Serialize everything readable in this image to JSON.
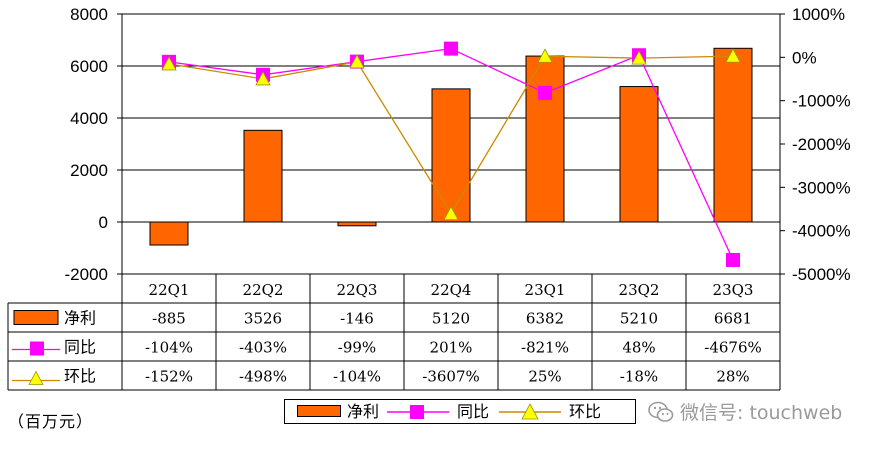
{
  "chart_data": {
    "type": "bar",
    "categories": [
      "22Q1",
      "22Q2",
      "22Q3",
      "22Q4",
      "23Q1",
      "23Q2",
      "23Q3"
    ],
    "series": [
      {
        "name": "净利",
        "type": "bar",
        "axis": "left",
        "color": "#ff6600",
        "values": [
          -885,
          3526,
          -146,
          5120,
          6382,
          5210,
          6681
        ]
      },
      {
        "name": "同比",
        "type": "line",
        "axis": "right",
        "color": "#ff00ff",
        "values": [
          -104,
          -403,
          -99,
          201,
          -821,
          48,
          -4676
        ]
      },
      {
        "name": "环比",
        "type": "line",
        "axis": "right",
        "color": "#cc8a00",
        "marker_color": "#ffff00",
        "values": [
          -152,
          -498,
          -104,
          -3607,
          25,
          -18,
          28
        ]
      }
    ],
    "left_axis": {
      "ticks": [
        "8000",
        "6000",
        "4000",
        "2000",
        "0",
        "-2000"
      ],
      "ylim": [
        -2000,
        8000
      ]
    },
    "right_axis": {
      "ticks": [
        "1000%",
        "0%",
        "-1000%",
        "-2000%",
        "-3000%",
        "-4000%",
        "-5000%"
      ],
      "ylim": [
        -5000,
        1000
      ]
    },
    "table": {
      "rows": [
        {
          "label": "净利",
          "cells": [
            "-885",
            "3526",
            "-146",
            "5120",
            "6382",
            "5210",
            "6681"
          ]
        },
        {
          "label": "同比",
          "cells": [
            "-104%",
            "-403%",
            "-99%",
            "201%",
            "-821%",
            "48%",
            "-4676%"
          ]
        },
        {
          "label": "环比",
          "cells": [
            "-152%",
            "-498%",
            "-104%",
            "-3607%",
            "25%",
            "-18%",
            "28%"
          ]
        }
      ]
    },
    "grid": true
  },
  "unit_label": "（百万元）",
  "legend": {
    "items": [
      "净利",
      "同比",
      "环比"
    ]
  },
  "watermark": "微信号: touchweb"
}
